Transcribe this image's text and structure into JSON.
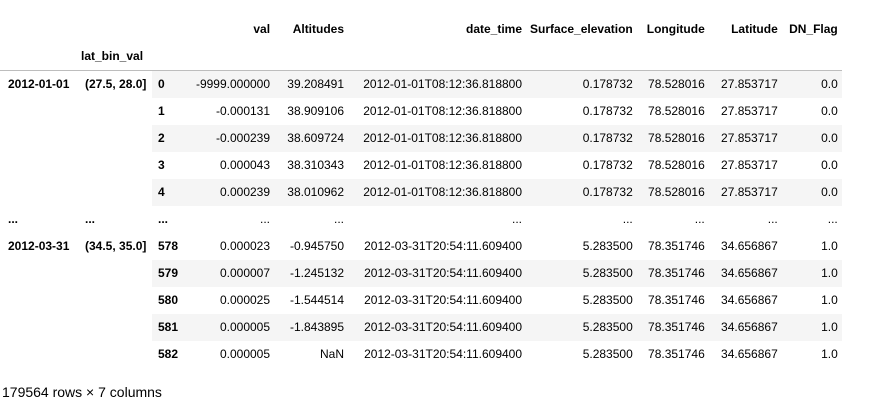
{
  "table": {
    "columns": [
      "val",
      "Altitudes",
      "date_time",
      "Surface_elevation",
      "Longitude",
      "Latitude",
      "DN_Flag"
    ],
    "index_names": [
      "",
      "lat_bin_val",
      ""
    ],
    "rows": [
      {
        "idx0": "2012-01-01",
        "idx1": "(27.5, 28.0]",
        "idx2": "0",
        "cells": [
          "-9999.000000",
          "39.208491",
          "2012-01-01T08:12:36.818800",
          "0.178732",
          "78.528016",
          "27.853717",
          "0.0"
        ]
      },
      {
        "idx0": "",
        "idx1": "",
        "idx2": "1",
        "cells": [
          "-0.000131",
          "38.909106",
          "2012-01-01T08:12:36.818800",
          "0.178732",
          "78.528016",
          "27.853717",
          "0.0"
        ]
      },
      {
        "idx0": "",
        "idx1": "",
        "idx2": "2",
        "cells": [
          "-0.000239",
          "38.609724",
          "2012-01-01T08:12:36.818800",
          "0.178732",
          "78.528016",
          "27.853717",
          "0.0"
        ]
      },
      {
        "idx0": "",
        "idx1": "",
        "idx2": "3",
        "cells": [
          "0.000043",
          "38.310343",
          "2012-01-01T08:12:36.818800",
          "0.178732",
          "78.528016",
          "27.853717",
          "0.0"
        ]
      },
      {
        "idx0": "",
        "idx1": "",
        "idx2": "4",
        "cells": [
          "0.000239",
          "38.010962",
          "2012-01-01T08:12:36.818800",
          "0.178732",
          "78.528016",
          "27.853717",
          "0.0"
        ]
      },
      {
        "idx0": "...",
        "idx1": "...",
        "idx2": "...",
        "cells": [
          "...",
          "...",
          "...",
          "...",
          "...",
          "...",
          "..."
        ],
        "ellipsis": true
      },
      {
        "idx0": "2012-03-31",
        "idx1": "(34.5, 35.0]",
        "idx2": "578",
        "cells": [
          "0.000023",
          "-0.945750",
          "2012-03-31T20:54:11.609400",
          "5.283500",
          "78.351746",
          "34.656867",
          "1.0"
        ]
      },
      {
        "idx0": "",
        "idx1": "",
        "idx2": "579",
        "cells": [
          "0.000007",
          "-1.245132",
          "2012-03-31T20:54:11.609400",
          "5.283500",
          "78.351746",
          "34.656867",
          "1.0"
        ]
      },
      {
        "idx0": "",
        "idx1": "",
        "idx2": "580",
        "cells": [
          "0.000025",
          "-1.544514",
          "2012-03-31T20:54:11.609400",
          "5.283500",
          "78.351746",
          "34.656867",
          "1.0"
        ]
      },
      {
        "idx0": "",
        "idx1": "",
        "idx2": "581",
        "cells": [
          "0.000005",
          "-1.843895",
          "2012-03-31T20:54:11.609400",
          "5.283500",
          "78.351746",
          "34.656867",
          "1.0"
        ]
      },
      {
        "idx0": "",
        "idx1": "",
        "idx2": "582",
        "cells": [
          "0.000005",
          "NaN",
          "2012-03-31T20:54:11.609400",
          "5.283500",
          "78.351746",
          "34.656867",
          "1.0"
        ]
      }
    ]
  },
  "footer": {
    "shape_text": "179564 rows × 7 columns"
  }
}
